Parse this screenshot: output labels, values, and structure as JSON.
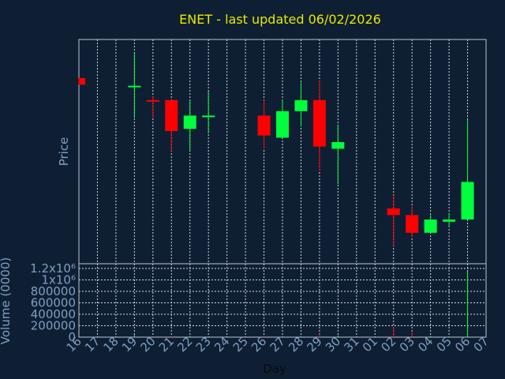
{
  "colors": {
    "background": "#0f1f33",
    "plot_frame": "#b8c4d4",
    "grid": "#d0d8e4",
    "axis_text": "#7f9fc0",
    "title_text": "#e8e800",
    "up": "#00ff3c",
    "down": "#ff0000"
  },
  "chart_data": {
    "type": "candlestick",
    "title": "ENET - last updated 06/02/2026",
    "xlabel": "Day",
    "ylabel": "Price",
    "volume_label": "Volume (0000)",
    "grid": true,
    "x_ticks": [
      "16",
      "17",
      "18",
      "19",
      "20",
      "21",
      "22",
      "23",
      "24",
      "25",
      "26",
      "27",
      "28",
      "29",
      "30",
      "31",
      "01",
      "02",
      "03",
      "04",
      "05",
      "06",
      "07"
    ],
    "volume_ticks": [
      "0",
      "200000",
      "400000",
      "600000",
      "800000",
      "1x10⁶",
      "1.2x10⁶"
    ],
    "volume_ticks_values": [
      0,
      200000,
      400000,
      600000,
      800000,
      1000000,
      1200000
    ],
    "price_range": [
      0,
      100
    ],
    "volume_range": [
      0,
      1200000
    ],
    "candles": [
      {
        "x": "16",
        "open": 84.0,
        "close": 81.0,
        "high": 84.0,
        "low": 81.0,
        "volume": 0
      },
      {
        "x": "19",
        "open": 80.5,
        "close": 80.5,
        "high": 95.0,
        "low": 66.0,
        "volume": 40000
      },
      {
        "x": "20",
        "open": 74.0,
        "close": 73.5,
        "high": 76.0,
        "low": 66.0,
        "volume": 10000
      },
      {
        "x": "21",
        "open": 74.0,
        "close": 60.0,
        "high": 74.0,
        "low": 51.0,
        "volume": 20000
      },
      {
        "x": "22",
        "open": 61.0,
        "close": 67.0,
        "high": 74.0,
        "low": 51.0,
        "volume": 20000
      },
      {
        "x": "23",
        "open": 67.0,
        "close": 67.0,
        "high": 78.0,
        "low": 59.0,
        "volume": 10000
      },
      {
        "x": "26",
        "open": 67.0,
        "close": 58.0,
        "high": 74.0,
        "low": 52.0,
        "volume": 30000
      },
      {
        "x": "27",
        "open": 57.0,
        "close": 69.0,
        "high": 74.0,
        "low": 57.0,
        "volume": 20000
      },
      {
        "x": "28",
        "open": 69.0,
        "close": 74.0,
        "high": 82.0,
        "low": 62.0,
        "volume": 20000
      },
      {
        "x": "29",
        "open": 74.0,
        "close": 53.0,
        "high": 83.0,
        "low": 42.0,
        "volume": 50000
      },
      {
        "x": "30",
        "open": 52.0,
        "close": 55.0,
        "high": 63.0,
        "low": 36.0,
        "volume": 30000
      },
      {
        "x": "02",
        "open": 25.0,
        "close": 22.0,
        "high": 31.0,
        "low": 8.0,
        "volume": 180000
      },
      {
        "x": "03",
        "open": 22.0,
        "close": 14.0,
        "high": 26.0,
        "low": 12.0,
        "volume": 90000
      },
      {
        "x": "04",
        "open": 14.0,
        "close": 20.0,
        "high": 22.0,
        "low": 14.0,
        "volume": 20000
      },
      {
        "x": "05",
        "open": 19.0,
        "close": 20.0,
        "high": 23.0,
        "low": 17.0,
        "volume": 10000
      },
      {
        "x": "06",
        "open": 20.0,
        "close": 37.0,
        "high": 65.0,
        "low": 20.0,
        "volume": 1150000
      }
    ]
  }
}
